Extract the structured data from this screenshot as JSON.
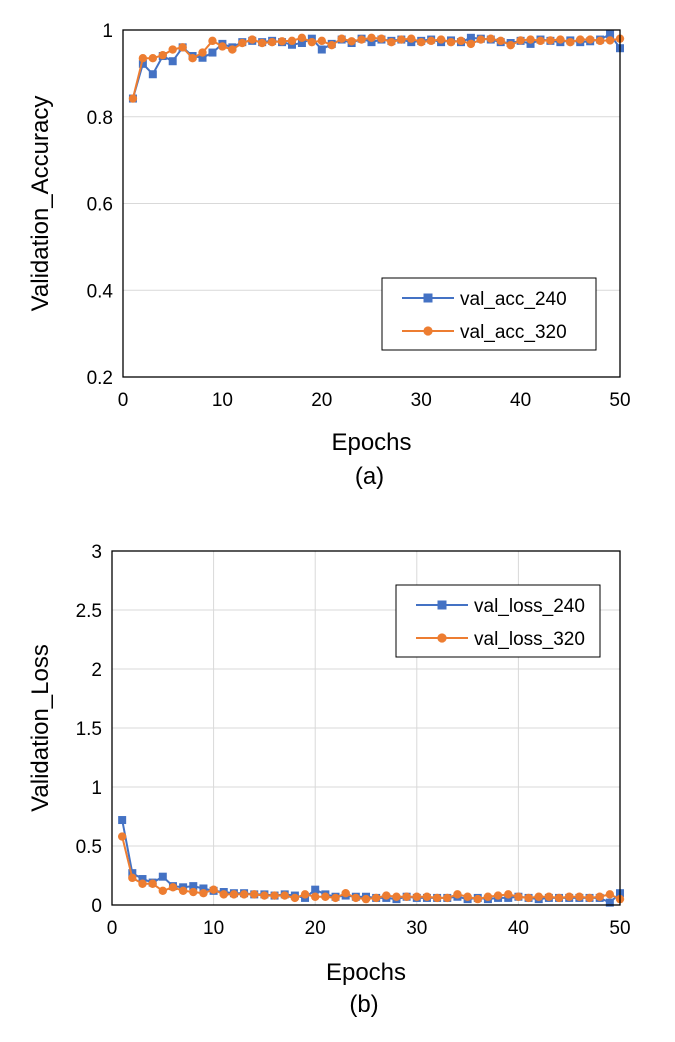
{
  "colors": {
    "s240": "#4472C4",
    "s320": "#ED7D31"
  },
  "chart_data": [
    {
      "type": "line",
      "caption": "(a)",
      "xlabel": "Epochs",
      "ylabel": "Validation_Accuracy",
      "xlim": [
        0,
        50
      ],
      "ylim": [
        0.2,
        1
      ],
      "xticks": [
        0,
        10,
        20,
        30,
        40,
        50
      ],
      "yticks": [
        0.2,
        0.4,
        0.6,
        0.8,
        1
      ],
      "ytick_labels": [
        "0.2",
        "0.4",
        "0.6",
        "0.8",
        "1"
      ],
      "grid": "horizontal",
      "legend": "bottom-right",
      "x": [
        1,
        2,
        3,
        4,
        5,
        6,
        7,
        8,
        9,
        10,
        11,
        12,
        13,
        14,
        15,
        16,
        17,
        18,
        19,
        20,
        21,
        22,
        23,
        24,
        25,
        26,
        27,
        28,
        29,
        30,
        31,
        32,
        33,
        34,
        35,
        36,
        37,
        38,
        39,
        40,
        41,
        42,
        43,
        44,
        45,
        46,
        47,
        48,
        49,
        50
      ],
      "series": [
        {
          "name": "val_acc_240",
          "marker": "square",
          "color": "#4472C4",
          "values": [
            0.842,
            0.922,
            0.898,
            0.94,
            0.928,
            0.96,
            0.94,
            0.936,
            0.948,
            0.968,
            0.96,
            0.972,
            0.975,
            0.972,
            0.975,
            0.972,
            0.966,
            0.97,
            0.98,
            0.955,
            0.968,
            0.978,
            0.97,
            0.98,
            0.972,
            0.978,
            0.975,
            0.978,
            0.972,
            0.975,
            0.978,
            0.972,
            0.976,
            0.972,
            0.982,
            0.98,
            0.978,
            0.972,
            0.97,
            0.975,
            0.968,
            0.978,
            0.975,
            0.972,
            0.976,
            0.972,
            0.974,
            0.978,
            0.99,
            0.958
          ]
        },
        {
          "name": "val_acc_320",
          "marker": "circle",
          "color": "#ED7D31",
          "values": [
            0.842,
            0.935,
            0.935,
            0.942,
            0.955,
            0.96,
            0.935,
            0.948,
            0.975,
            0.962,
            0.955,
            0.97,
            0.978,
            0.97,
            0.972,
            0.974,
            0.975,
            0.982,
            0.972,
            0.975,
            0.965,
            0.98,
            0.974,
            0.978,
            0.982,
            0.98,
            0.972,
            0.978,
            0.98,
            0.972,
            0.975,
            0.978,
            0.972,
            0.975,
            0.968,
            0.978,
            0.98,
            0.975,
            0.965,
            0.976,
            0.978,
            0.975,
            0.976,
            0.978,
            0.972,
            0.978,
            0.978,
            0.975,
            0.976,
            0.98
          ]
        }
      ]
    },
    {
      "type": "line",
      "caption": "(b)",
      "xlabel": "Epochs",
      "ylabel": "Validation_Loss",
      "xlim": [
        0,
        50
      ],
      "ylim": [
        0,
        3
      ],
      "xticks": [
        0,
        10,
        20,
        30,
        40,
        50
      ],
      "yticks": [
        0,
        0.5,
        1,
        1.5,
        2,
        2.5,
        3
      ],
      "ytick_labels": [
        "0",
        "0.5",
        "1",
        "1.5",
        "2",
        "2.5",
        "3"
      ],
      "grid": "both",
      "legend": "top-right",
      "x": [
        1,
        2,
        3,
        4,
        5,
        6,
        7,
        8,
        9,
        10,
        11,
        12,
        13,
        14,
        15,
        16,
        17,
        18,
        19,
        20,
        21,
        22,
        23,
        24,
        25,
        26,
        27,
        28,
        29,
        30,
        31,
        32,
        33,
        34,
        35,
        36,
        37,
        38,
        39,
        40,
        41,
        42,
        43,
        44,
        45,
        46,
        47,
        48,
        49,
        50
      ],
      "series": [
        {
          "name": "val_loss_240",
          "marker": "square",
          "color": "#4472C4",
          "values": [
            0.72,
            0.27,
            0.22,
            0.19,
            0.24,
            0.16,
            0.15,
            0.16,
            0.14,
            0.12,
            0.11,
            0.1,
            0.1,
            0.09,
            0.09,
            0.08,
            0.09,
            0.08,
            0.06,
            0.13,
            0.09,
            0.07,
            0.08,
            0.07,
            0.07,
            0.06,
            0.06,
            0.05,
            0.07,
            0.06,
            0.06,
            0.06,
            0.06,
            0.07,
            0.05,
            0.06,
            0.05,
            0.06,
            0.06,
            0.07,
            0.06,
            0.05,
            0.06,
            0.06,
            0.06,
            0.06,
            0.06,
            0.06,
            0.02,
            0.1
          ]
        },
        {
          "name": "val_loss_320",
          "marker": "circle",
          "color": "#ED7D31",
          "values": [
            0.58,
            0.23,
            0.18,
            0.18,
            0.12,
            0.15,
            0.12,
            0.11,
            0.1,
            0.13,
            0.09,
            0.09,
            0.09,
            0.09,
            0.08,
            0.08,
            0.08,
            0.06,
            0.09,
            0.07,
            0.07,
            0.06,
            0.1,
            0.06,
            0.05,
            0.06,
            0.08,
            0.07,
            0.07,
            0.07,
            0.07,
            0.06,
            0.06,
            0.09,
            0.07,
            0.05,
            0.07,
            0.08,
            0.09,
            0.07,
            0.06,
            0.07,
            0.07,
            0.06,
            0.07,
            0.07,
            0.06,
            0.07,
            0.09,
            0.05
          ]
        }
      ]
    }
  ]
}
